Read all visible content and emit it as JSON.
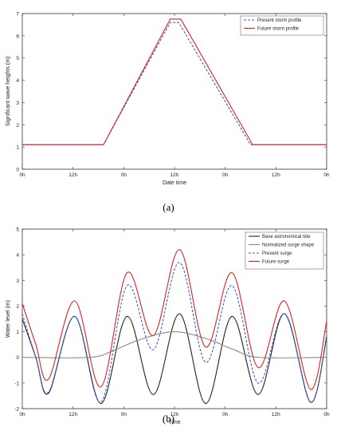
{
  "chart_data": [
    {
      "type": "line",
      "caption": "(a)",
      "xlabel": "Date time",
      "ylabel": "Significant wave heights (m)",
      "xticks": [
        "0h",
        "12h",
        "0h",
        "12h",
        "0h",
        "12h",
        "0h"
      ],
      "xlim": [
        0,
        72
      ],
      "ylim": [
        0,
        7
      ],
      "yticks": [
        0,
        1,
        2,
        3,
        4,
        5,
        6,
        7
      ],
      "grid": false,
      "legend": "top-right",
      "series": [
        {
          "name": "Present storm profile",
          "color": "#3a5bd8",
          "dash": "dashed",
          "x": [
            0,
            19.2,
            35,
            37,
            54,
            72
          ],
          "y": [
            1.1,
            1.1,
            6.6,
            6.6,
            1.1,
            1.1
          ]
        },
        {
          "name": "Future storm profile",
          "color": "#e02020",
          "dash": "solid",
          "x": [
            0,
            19.2,
            35,
            37.5,
            54.5,
            72
          ],
          "y": [
            1.1,
            1.1,
            6.75,
            6.75,
            1.1,
            1.1
          ]
        }
      ]
    },
    {
      "type": "line",
      "caption": "(b)",
      "xlabel": "Time",
      "ylabel": "Water level (m)",
      "xticks": [
        "0h",
        "12h",
        "0h",
        "12h",
        "0h",
        "12h",
        "0h"
      ],
      "xlim": [
        0,
        72
      ],
      "ylim": [
        -2,
        5
      ],
      "yticks": [
        -2,
        -1,
        0,
        1,
        2,
        3,
        4,
        5
      ],
      "grid": false,
      "legend": "top-right",
      "series": [
        {
          "name": "Base astronomical tide",
          "color": "#222222",
          "dash": "solid",
          "x": [
            0,
            3.2,
            6.2,
            12.4,
            18.6,
            24.8,
            31.0,
            37.2,
            43.4,
            49.6,
            55.8,
            62.0,
            68.2,
            72
          ],
          "y": [
            1.5,
            0,
            -1.4,
            1.6,
            -1.8,
            1.6,
            -1.45,
            1.7,
            -1.8,
            1.6,
            -1.45,
            1.7,
            -1.75,
            0.8
          ]
        },
        {
          "name": "Normalized surge shape",
          "color": "#8c8c8c",
          "dash": "solid",
          "x": [
            0,
            16,
            22,
            28,
            36,
            44,
            50,
            56,
            72
          ],
          "y": [
            0,
            0,
            0.3,
            0.7,
            1.0,
            0.7,
            0.3,
            0,
            0
          ]
        },
        {
          "name": "Present surge",
          "color": "#3a5bd8",
          "dash": "dashed",
          "x": [
            0,
            3.2,
            6.2,
            12.4,
            18.6,
            24.8,
            31.0,
            37.2,
            43.4,
            49.6,
            55.8,
            62.0,
            68.2,
            72
          ],
          "y": [
            1.7,
            0,
            -1.35,
            1.6,
            -1.75,
            2.8,
            0.3,
            3.7,
            -0.2,
            2.8,
            -1.0,
            1.7,
            -1.75,
            0.8
          ]
        },
        {
          "name": "Future surge",
          "color": "#e02020",
          "dash": "solid",
          "x": [
            0,
            3.2,
            6.2,
            12.4,
            18.6,
            24.8,
            31.0,
            37.2,
            43.4,
            49.6,
            55.8,
            62.0,
            68.2,
            72
          ],
          "y": [
            2.1,
            0.5,
            -0.85,
            2.2,
            -1.15,
            3.3,
            0.85,
            4.2,
            0.4,
            3.3,
            -0.4,
            2.2,
            -1.25,
            1.4
          ]
        }
      ]
    }
  ]
}
